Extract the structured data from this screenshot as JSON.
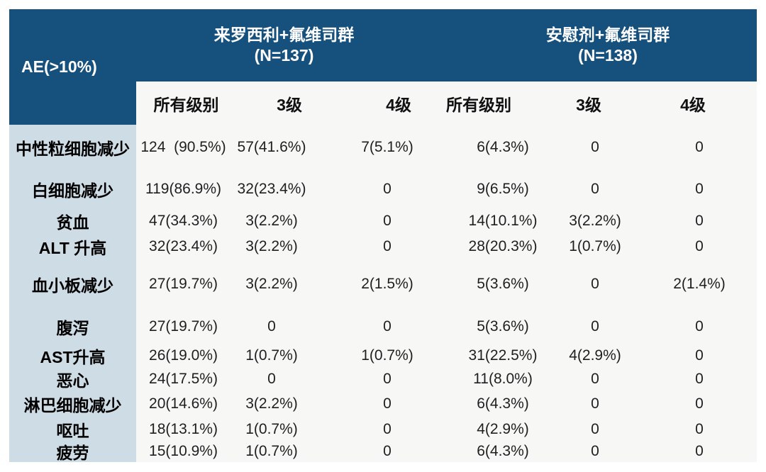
{
  "colors": {
    "header_bg": "#16517e",
    "label_column_bg": "#cedce6",
    "body_bg": "#f7f7f6",
    "bottom_border": "#2f5f94",
    "header_text": "#ffffff",
    "body_text": "#1f1f1f"
  },
  "chart_data": {
    "type": "table",
    "corner_header": "AE(>10%)",
    "column_groups": [
      {
        "label": "来罗西利+氟维司群",
        "n_label": "(N=137)",
        "span": 3
      },
      {
        "label": "安慰剂+氟维司群",
        "n_label": "(N=138)",
        "span": 3
      }
    ],
    "columns": [
      "所有级别",
      "3级",
      "4级",
      "所有级别",
      "3级",
      "4级"
    ],
    "rows": [
      {
        "label": "中性粒细胞减少",
        "cells": [
          "124  (90.5%)",
          "57(41.6%)",
          "7(5.1%)",
          "6(4.3%)",
          "0",
          "0"
        ]
      },
      {
        "label": "白细胞减少",
        "cells": [
          "119(86.9%)",
          "32(23.4%)",
          "0",
          "9(6.5%)",
          "0",
          "0"
        ]
      },
      {
        "label": "贫血",
        "cells": [
          "47(34.3%)",
          "3(2.2%)",
          "0",
          "14(10.1%)",
          "3(2.2%)",
          "0"
        ]
      },
      {
        "label": "ALT 升高",
        "cells": [
          "32(23.4%)",
          "3(2.2%)",
          "0",
          "28(20.3%)",
          "1(0.7%)",
          "0"
        ]
      },
      {
        "label": "血小板减少",
        "cells": [
          "27(19.7%)",
          "3(2.2%)",
          "2(1.5%)",
          "5(3.6%)",
          "0",
          "2(1.4%)"
        ]
      },
      {
        "label": "腹泻",
        "cells": [
          "27(19.7%)",
          "0",
          "0",
          "5(3.6%)",
          "0",
          "0"
        ]
      },
      {
        "label": "AST升高",
        "cells": [
          "26(19.0%)",
          "1(0.7%)",
          "1(0.7%)",
          "31(22.5%)",
          "4(2.9%)",
          "0"
        ]
      },
      {
        "label": "恶心",
        "cells": [
          "24(17.5%)",
          "0",
          "0",
          "11(8.0%)",
          "0",
          "0"
        ]
      },
      {
        "label": "淋巴细胞减少",
        "cells": [
          "20(14.6%)",
          "3(2.2%)",
          "0",
          "6(4.3%)",
          "0",
          "0"
        ]
      },
      {
        "label": "呕吐",
        "cells": [
          "18(13.1%)",
          "1(0.7%)",
          "0",
          "4(2.9%)",
          "0",
          "0"
        ]
      },
      {
        "label": "疲劳",
        "cells": [
          "15(10.9%)",
          "1(0.7%)",
          "0",
          "6(4.3%)",
          "0",
          "0"
        ]
      }
    ]
  }
}
